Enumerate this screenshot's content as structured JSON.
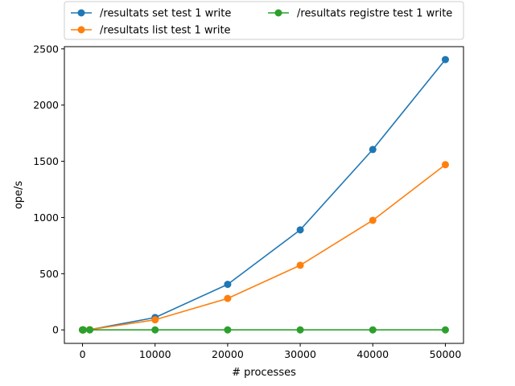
{
  "chart_data": {
    "type": "line",
    "xlabel": "# processes",
    "ylabel": "ope/s",
    "xlim": [
      -2500,
      52500
    ],
    "ylim": [
      -120,
      2520
    ],
    "xticks": [
      0,
      10000,
      20000,
      30000,
      40000,
      50000
    ],
    "yticks": [
      0,
      500,
      1000,
      1500,
      2000,
      2500
    ],
    "grid": false,
    "legend_position": "top (above plot, two columns)",
    "x": [
      1,
      10,
      100,
      1000,
      10000,
      20000,
      30000,
      40000,
      50000
    ],
    "series": [
      {
        "name": "/resultats set test 1 write",
        "color": "#1f77b4",
        "values": [
          0,
          0,
          0,
          2,
          110,
          405,
          890,
          1605,
          2405
        ]
      },
      {
        "name": "/resultats list test 1 write",
        "color": "#ff7f0e",
        "values": [
          0,
          0,
          0,
          2,
          90,
          280,
          575,
          975,
          1470
        ]
      },
      {
        "name": "/resultats registre test 1 write",
        "color": "#2ca02c",
        "values": [
          0,
          0,
          0,
          0,
          0,
          0,
          0,
          0,
          0
        ]
      }
    ]
  }
}
